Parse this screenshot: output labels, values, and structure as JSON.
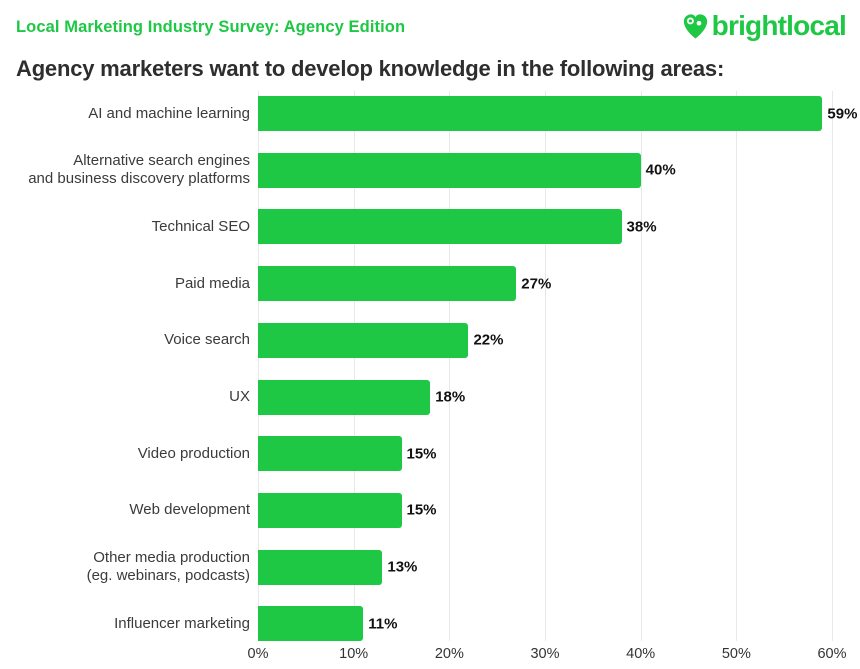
{
  "header": {
    "kicker": "Local Marketing Industry Survey: Agency Edition",
    "logo_text": "brightlocal"
  },
  "title": "Agency marketers want to develop knowledge in the following areas:",
  "colors": {
    "brand_green": "#1EC845",
    "title_text": "#2E2E2E",
    "category_text": "#3B3B3B",
    "value_text": "#121212",
    "grid": "#E8E8E8"
  },
  "chart_data": {
    "type": "bar",
    "orientation": "horizontal",
    "title": "Agency marketers want to develop knowledge in the following areas:",
    "categories": [
      "AI and machine learning",
      "Alternative search engines and business discovery platforms",
      "Technical SEO",
      "Paid media",
      "Voice search",
      "UX",
      "Video production",
      "Web development",
      "Other media production (eg. webinars, podcasts)",
      "Influencer marketing"
    ],
    "category_lines": [
      [
        "AI and machine learning"
      ],
      [
        "Alternative search engines",
        "and business discovery platforms"
      ],
      [
        "Technical SEO"
      ],
      [
        "Paid media"
      ],
      [
        "Voice search"
      ],
      [
        "UX"
      ],
      [
        "Video production"
      ],
      [
        "Web development"
      ],
      [
        "Other media production",
        "(eg. webinars, podcasts)"
      ],
      [
        "Influencer marketing"
      ]
    ],
    "values": [
      59,
      40,
      38,
      27,
      22,
      18,
      15,
      15,
      13,
      11
    ],
    "value_labels": [
      "59%",
      "40%",
      "38%",
      "27%",
      "22%",
      "18%",
      "15%",
      "15%",
      "13%",
      "11%"
    ],
    "x_ticks": [
      "0%",
      "10%",
      "20%",
      "30%",
      "40%",
      "50%",
      "60%"
    ],
    "xlim": [
      0,
      60
    ],
    "bar_color": "#1EC845",
    "grid": true,
    "legend": false
  }
}
